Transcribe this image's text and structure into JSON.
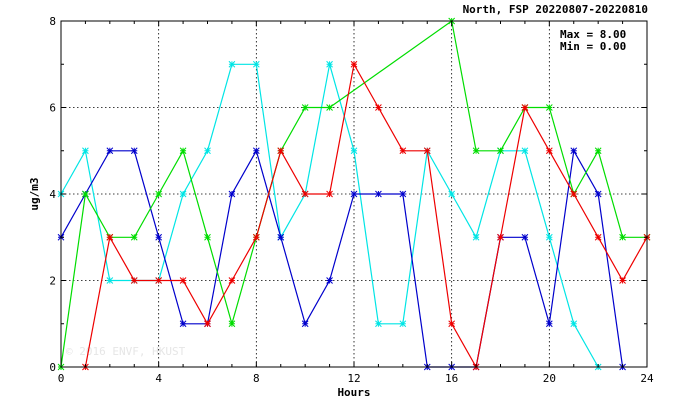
{
  "chart_data": {
    "type": "line",
    "title": "North, FSP 20220807-20220810",
    "xlabel": "Hours",
    "ylabel": "ug/m3",
    "xlim": [
      0,
      24
    ],
    "ylim": [
      0,
      8
    ],
    "xticks": [
      "0",
      "4",
      "8",
      "12",
      "16",
      "20",
      "24"
    ],
    "yticks": [
      "0",
      "2",
      "4",
      "6",
      "8"
    ],
    "grid": true,
    "stats": [
      "Max = 8.00",
      "Min = 0.00"
    ],
    "watermark": "© 2016 ENVF, HKUST",
    "series": [
      {
        "color": "#00e5e5",
        "x": [
          0,
          1,
          2,
          3,
          4,
          5,
          6,
          7,
          8,
          9,
          10,
          11,
          12,
          13,
          14,
          15,
          16,
          17,
          18,
          19,
          20,
          21,
          22
        ],
        "y": [
          4,
          5,
          2,
          2,
          2,
          4,
          5,
          7,
          7,
          3,
          4,
          7,
          5,
          1,
          1,
          5,
          4,
          3,
          5,
          5,
          3,
          1,
          0
        ]
      },
      {
        "color": "#0000cc",
        "x": [
          0,
          1,
          2,
          3,
          4,
          5,
          6,
          7,
          8,
          9,
          10,
          11,
          12,
          13,
          14,
          15,
          16,
          17,
          18,
          19,
          20,
          21,
          22,
          23
        ],
        "y": [
          3,
          4,
          5,
          5,
          3,
          1,
          1,
          4,
          5,
          3,
          1,
          2,
          4,
          4,
          4,
          0,
          0,
          0,
          3,
          3,
          1,
          5,
          4,
          0
        ]
      },
      {
        "color": "#00dd00",
        "x": [
          0,
          1,
          2,
          3,
          4,
          5,
          6,
          7,
          8,
          9,
          10,
          11,
          16,
          17,
          18,
          19,
          20,
          21,
          22,
          23,
          24
        ],
        "y": [
          0,
          4,
          3,
          3,
          4,
          5,
          3,
          1,
          3,
          5,
          6,
          6,
          8,
          5,
          5,
          6,
          6,
          4,
          5,
          3,
          3
        ]
      },
      {
        "color": "#ee0000",
        "x": [
          1,
          2,
          3,
          4,
          5,
          6,
          7,
          8,
          9,
          10,
          11,
          12,
          13,
          14,
          15,
          16,
          17,
          18,
          19,
          20,
          21,
          22,
          23,
          24
        ],
        "y": [
          0,
          3,
          2,
          2,
          2,
          1,
          2,
          3,
          5,
          4,
          4,
          7,
          6,
          5,
          5,
          1,
          0,
          3,
          6,
          5,
          4,
          3,
          2,
          3
        ]
      }
    ]
  }
}
